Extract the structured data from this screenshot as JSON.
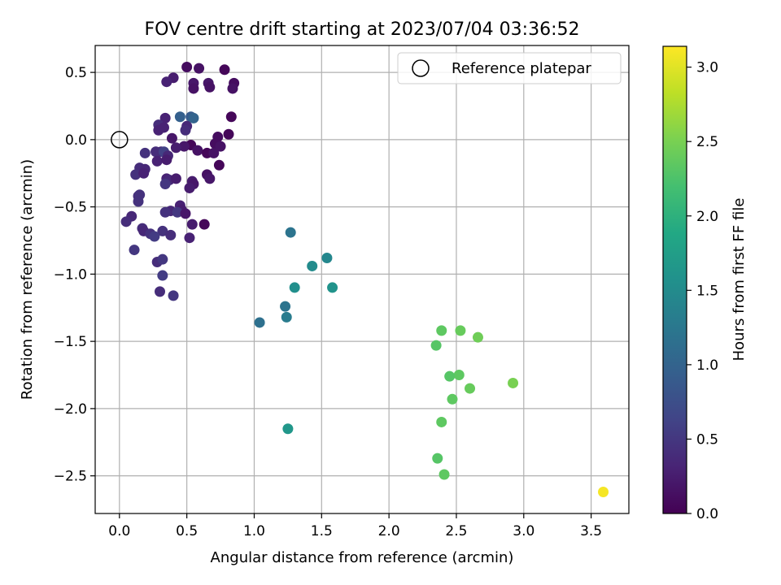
{
  "chart_data": {
    "type": "scatter",
    "title": "FOV centre drift starting at 2023/07/04 03:36:52",
    "xlabel": "Angular distance from reference (arcmin)",
    "ylabel": "Rotation from reference (arcmin)",
    "xlim": [
      -0.18,
      3.78
    ],
    "ylim": [
      -2.78,
      0.7
    ],
    "xticks": [
      0.0,
      0.5,
      1.0,
      1.5,
      2.0,
      2.5,
      3.0,
      3.5
    ],
    "xtick_labels": [
      "0.0",
      "0.5",
      "1.0",
      "1.5",
      "2.0",
      "2.5",
      "3.0",
      "3.5"
    ],
    "yticks": [
      0.5,
      0.0,
      -0.5,
      -1.0,
      -1.5,
      -2.0,
      -2.5
    ],
    "ytick_labels": [
      "0.5",
      "0.0",
      "−0.5",
      "−1.0",
      "−1.5",
      "−2.0",
      "−2.5"
    ],
    "grid": true,
    "legend": {
      "position": "upper right",
      "entries": [
        "Reference platepar"
      ]
    },
    "reference_point": {
      "x": 0.0,
      "y": 0.0
    },
    "colorbar": {
      "label": "Hours from first FF file",
      "min": 0.0,
      "max": 3.14,
      "ticks": [
        0.0,
        0.5,
        1.0,
        1.5,
        2.0,
        2.5,
        3.0
      ],
      "tick_labels": [
        "0.0",
        "0.5",
        "1.0",
        "1.5",
        "2.0",
        "2.5",
        "3.0"
      ],
      "colormap": "viridis"
    },
    "points": [
      {
        "x": 0.5,
        "y": 0.54,
        "c": 0.1
      },
      {
        "x": 0.59,
        "y": 0.53,
        "c": 0.15
      },
      {
        "x": 0.78,
        "y": 0.52,
        "c": 0.05
      },
      {
        "x": 0.4,
        "y": 0.46,
        "c": 0.25
      },
      {
        "x": 0.35,
        "y": 0.43,
        "c": 0.3
      },
      {
        "x": 0.55,
        "y": 0.42,
        "c": 0.2
      },
      {
        "x": 0.55,
        "y": 0.38,
        "c": 0.15
      },
      {
        "x": 0.66,
        "y": 0.42,
        "c": 0.2
      },
      {
        "x": 0.67,
        "y": 0.39,
        "c": 0.15
      },
      {
        "x": 0.85,
        "y": 0.42,
        "c": 0.1
      },
      {
        "x": 0.84,
        "y": 0.38,
        "c": 0.15
      },
      {
        "x": 0.45,
        "y": 0.17,
        "c": 0.95
      },
      {
        "x": 0.53,
        "y": 0.17,
        "c": 0.9
      },
      {
        "x": 0.55,
        "y": 0.16,
        "c": 1.0
      },
      {
        "x": 0.34,
        "y": 0.16,
        "c": 0.3
      },
      {
        "x": 0.83,
        "y": 0.17,
        "c": 0.05
      },
      {
        "x": 0.29,
        "y": 0.11,
        "c": 0.4
      },
      {
        "x": 0.33,
        "y": 0.09,
        "c": 0.3
      },
      {
        "x": 0.5,
        "y": 0.1,
        "c": 0.35
      },
      {
        "x": 0.49,
        "y": 0.07,
        "c": 0.4
      },
      {
        "x": 0.29,
        "y": 0.07,
        "c": 0.3
      },
      {
        "x": 0.39,
        "y": 0.01,
        "c": 0.2
      },
      {
        "x": 0.73,
        "y": 0.02,
        "c": 0.1
      },
      {
        "x": 0.81,
        "y": 0.04,
        "c": 0.05
      },
      {
        "x": 0.71,
        "y": -0.03,
        "c": 0.1
      },
      {
        "x": 0.75,
        "y": -0.05,
        "c": 0.15
      },
      {
        "x": 0.53,
        "y": -0.04,
        "c": 0.05
      },
      {
        "x": 0.48,
        "y": -0.05,
        "c": 0.2
      },
      {
        "x": 0.42,
        "y": -0.06,
        "c": 0.25
      },
      {
        "x": 0.31,
        "y": -0.09,
        "c": 0.35
      },
      {
        "x": 0.27,
        "y": -0.09,
        "c": 0.4
      },
      {
        "x": 0.33,
        "y": -0.09,
        "c": 0.6
      },
      {
        "x": 0.19,
        "y": -0.1,
        "c": 0.45
      },
      {
        "x": 0.36,
        "y": -0.12,
        "c": 0.35
      },
      {
        "x": 0.58,
        "y": -0.08,
        "c": 0.15
      },
      {
        "x": 0.65,
        "y": -0.1,
        "c": 0.05
      },
      {
        "x": 0.7,
        "y": -0.1,
        "c": 0.15
      },
      {
        "x": 0.28,
        "y": -0.16,
        "c": 0.3
      },
      {
        "x": 0.35,
        "y": -0.15,
        "c": 0.25
      },
      {
        "x": 0.74,
        "y": -0.19,
        "c": 0.05
      },
      {
        "x": 0.15,
        "y": -0.21,
        "c": 0.4
      },
      {
        "x": 0.19,
        "y": -0.22,
        "c": 0.35
      },
      {
        "x": 0.12,
        "y": -0.26,
        "c": 0.45
      },
      {
        "x": 0.18,
        "y": -0.25,
        "c": 0.3
      },
      {
        "x": 0.65,
        "y": -0.26,
        "c": 0.15
      },
      {
        "x": 0.67,
        "y": -0.29,
        "c": 0.2
      },
      {
        "x": 0.35,
        "y": -0.29,
        "c": 0.3
      },
      {
        "x": 0.37,
        "y": -0.3,
        "c": 0.35
      },
      {
        "x": 0.42,
        "y": -0.29,
        "c": 0.25
      },
      {
        "x": 0.34,
        "y": -0.33,
        "c": 0.5
      },
      {
        "x": 0.54,
        "y": -0.31,
        "c": 0.25
      },
      {
        "x": 0.55,
        "y": -0.33,
        "c": 0.2
      },
      {
        "x": 0.52,
        "y": -0.36,
        "c": 0.25
      },
      {
        "x": 0.14,
        "y": -0.42,
        "c": 0.4
      },
      {
        "x": 0.15,
        "y": -0.41,
        "c": 0.45
      },
      {
        "x": 0.14,
        "y": -0.46,
        "c": 0.45
      },
      {
        "x": 0.45,
        "y": -0.49,
        "c": 0.3
      },
      {
        "x": 0.46,
        "y": -0.52,
        "c": 0.25
      },
      {
        "x": 0.38,
        "y": -0.53,
        "c": 0.35
      },
      {
        "x": 0.34,
        "y": -0.54,
        "c": 0.45
      },
      {
        "x": 0.43,
        "y": -0.54,
        "c": 0.5
      },
      {
        "x": 0.49,
        "y": -0.55,
        "c": 0.2
      },
      {
        "x": 0.09,
        "y": -0.57,
        "c": 0.35
      },
      {
        "x": 0.05,
        "y": -0.61,
        "c": 0.4
      },
      {
        "x": 0.54,
        "y": -0.63,
        "c": 0.25
      },
      {
        "x": 0.63,
        "y": -0.63,
        "c": 0.05
      },
      {
        "x": 0.17,
        "y": -0.66,
        "c": 0.4
      },
      {
        "x": 0.18,
        "y": -0.68,
        "c": 0.35
      },
      {
        "x": 0.32,
        "y": -0.68,
        "c": 0.45
      },
      {
        "x": 0.23,
        "y": -0.7,
        "c": 0.45
      },
      {
        "x": 0.38,
        "y": -0.71,
        "c": 0.4
      },
      {
        "x": 0.26,
        "y": -0.72,
        "c": 0.55
      },
      {
        "x": 0.52,
        "y": -0.73,
        "c": 0.3
      },
      {
        "x": 0.11,
        "y": -0.82,
        "c": 0.5
      },
      {
        "x": 0.28,
        "y": -0.91,
        "c": 0.4
      },
      {
        "x": 0.32,
        "y": -0.89,
        "c": 0.5
      },
      {
        "x": 0.32,
        "y": -1.01,
        "c": 0.55
      },
      {
        "x": 0.3,
        "y": -1.13,
        "c": 0.4
      },
      {
        "x": 0.4,
        "y": -1.16,
        "c": 0.5
      },
      {
        "x": 1.27,
        "y": -0.69,
        "c": 1.2
      },
      {
        "x": 1.54,
        "y": -0.88,
        "c": 1.45
      },
      {
        "x": 1.43,
        "y": -0.94,
        "c": 1.5
      },
      {
        "x": 1.3,
        "y": -1.1,
        "c": 1.55
      },
      {
        "x": 1.58,
        "y": -1.1,
        "c": 1.6
      },
      {
        "x": 1.23,
        "y": -1.24,
        "c": 1.2
      },
      {
        "x": 1.24,
        "y": -1.32,
        "c": 1.3
      },
      {
        "x": 1.04,
        "y": -1.36,
        "c": 1.15
      },
      {
        "x": 1.25,
        "y": -2.15,
        "c": 1.65
      },
      {
        "x": 2.39,
        "y": -1.42,
        "c": 2.35
      },
      {
        "x": 2.53,
        "y": -1.42,
        "c": 2.4
      },
      {
        "x": 2.66,
        "y": -1.47,
        "c": 2.45
      },
      {
        "x": 2.35,
        "y": -1.53,
        "c": 2.3
      },
      {
        "x": 2.52,
        "y": -1.75,
        "c": 2.35
      },
      {
        "x": 2.45,
        "y": -1.76,
        "c": 2.3
      },
      {
        "x": 2.92,
        "y": -1.81,
        "c": 2.5
      },
      {
        "x": 2.6,
        "y": -1.85,
        "c": 2.4
      },
      {
        "x": 2.47,
        "y": -1.93,
        "c": 2.35
      },
      {
        "x": 2.39,
        "y": -2.1,
        "c": 2.35
      },
      {
        "x": 2.36,
        "y": -2.37,
        "c": 2.3
      },
      {
        "x": 2.41,
        "y": -2.49,
        "c": 2.35
      },
      {
        "x": 3.59,
        "y": -2.62,
        "c": 3.1
      }
    ]
  }
}
